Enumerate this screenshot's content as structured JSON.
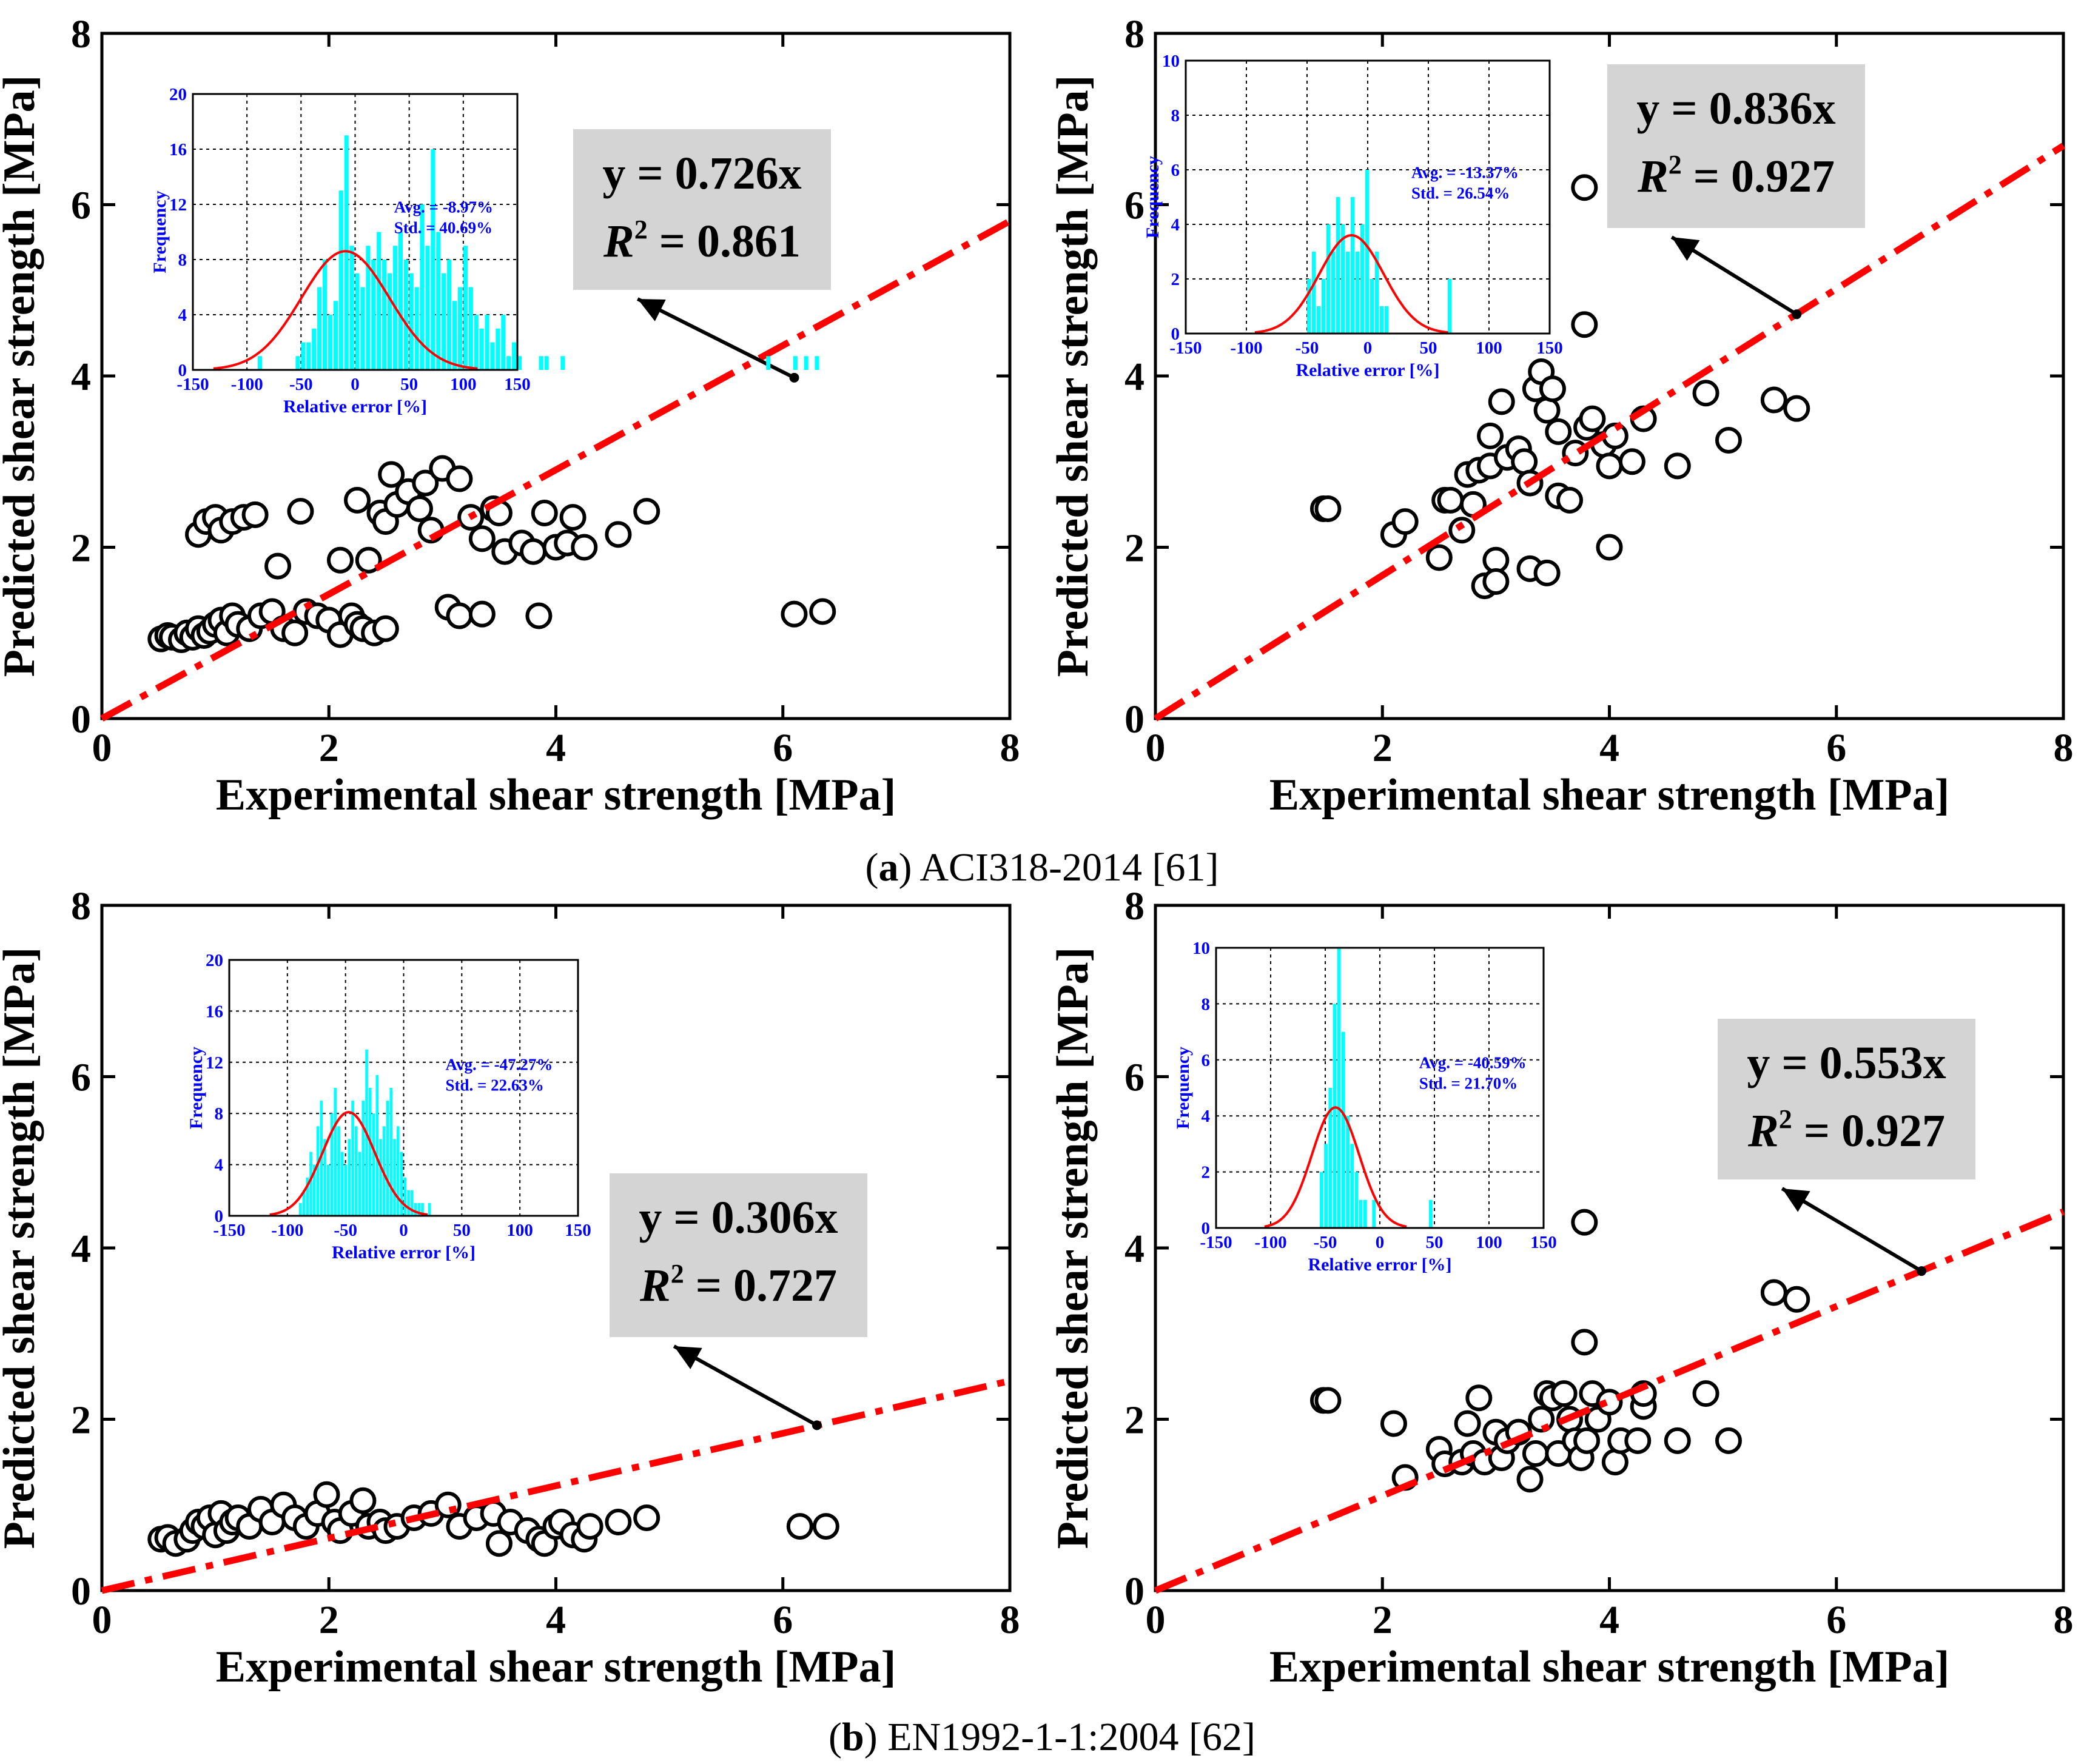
{
  "colors": {
    "fit_line": "#ff0000",
    "histogram_bar": "#00ffff",
    "normal_curve": "#ff0000",
    "inset_text": "#0000ff",
    "equation_box": "#d4d4d4",
    "marker_stroke": "#000000"
  },
  "captions": [
    {
      "letter": "a",
      "open": "(",
      "close": ")",
      "text": " ACI318-2014 [61]"
    },
    {
      "letter": "b",
      "open": "(",
      "close": ")",
      "text": " EN1992-1-1:2004 [62]"
    }
  ],
  "chart_data": [
    {
      "type": "scatter",
      "xlabel": "Experimental shear strength [MPa]",
      "ylabel": "Predicted shear strength [MPa]",
      "xlim": [
        0,
        8
      ],
      "ylim": [
        0,
        8
      ],
      "xticks": [
        "0",
        "2",
        "4",
        "6",
        "8"
      ],
      "yticks": [
        "0",
        "2",
        "4",
        "6",
        "8"
      ],
      "fit": {
        "slope": 0.726,
        "eq_label": "y = 0.726x",
        "r2_prefix": "R",
        "r2_sup": "2",
        "r2_value": " = 0.861",
        "arrow_point": [
          6.1,
          3.98
        ],
        "arrow_dir": "upper-left",
        "box_anchor": "upper-right"
      },
      "points": [
        [
          0.52,
          0.93
        ],
        [
          0.58,
          0.97
        ],
        [
          0.62,
          0.95
        ],
        [
          0.7,
          0.92
        ],
        [
          0.75,
          1.0
        ],
        [
          0.8,
          0.95
        ],
        [
          0.85,
          1.05
        ],
        [
          0.9,
          0.97
        ],
        [
          0.95,
          1.02
        ],
        [
          1.0,
          1.1
        ],
        [
          1.05,
          1.15
        ],
        [
          1.1,
          1.0
        ],
        [
          1.15,
          1.2
        ],
        [
          1.2,
          1.1
        ],
        [
          1.3,
          1.05
        ],
        [
          1.4,
          1.2
        ],
        [
          1.5,
          1.25
        ],
        [
          1.6,
          1.05
        ],
        [
          1.7,
          1.0
        ],
        [
          1.8,
          1.25
        ],
        [
          1.9,
          1.2
        ],
        [
          2.0,
          1.15
        ],
        [
          2.1,
          0.98
        ],
        [
          2.2,
          1.2
        ],
        [
          2.25,
          1.1
        ],
        [
          2.3,
          1.05
        ],
        [
          2.4,
          1.0
        ],
        [
          2.5,
          1.05
        ],
        [
          0.85,
          2.15
        ],
        [
          0.92,
          2.3
        ],
        [
          1.0,
          2.35
        ],
        [
          1.05,
          2.2
        ],
        [
          1.15,
          2.3
        ],
        [
          1.25,
          2.35
        ],
        [
          1.35,
          2.38
        ],
        [
          1.55,
          1.78
        ],
        [
          1.75,
          2.42
        ],
        [
          2.1,
          1.85
        ],
        [
          2.25,
          2.55
        ],
        [
          2.35,
          1.85
        ],
        [
          2.45,
          2.4
        ],
        [
          2.5,
          2.3
        ],
        [
          2.55,
          2.85
        ],
        [
          2.6,
          2.5
        ],
        [
          2.7,
          2.65
        ],
        [
          2.8,
          2.45
        ],
        [
          2.85,
          2.75
        ],
        [
          2.9,
          2.2
        ],
        [
          3.0,
          2.92
        ],
        [
          3.15,
          2.8
        ],
        [
          3.25,
          2.35
        ],
        [
          3.35,
          2.1
        ],
        [
          3.45,
          2.45
        ],
        [
          3.5,
          2.4
        ],
        [
          3.55,
          1.95
        ],
        [
          3.7,
          2.05
        ],
        [
          3.8,
          1.95
        ],
        [
          3.9,
          2.4
        ],
        [
          4.0,
          2.0
        ],
        [
          4.1,
          2.05
        ],
        [
          4.15,
          2.35
        ],
        [
          4.25,
          2.0
        ],
        [
          4.55,
          2.15
        ],
        [
          4.8,
          2.42
        ],
        [
          3.05,
          1.3
        ],
        [
          3.15,
          1.2
        ],
        [
          3.35,
          1.22
        ],
        [
          3.85,
          1.2
        ],
        [
          6.1,
          1.22
        ],
        [
          6.35,
          1.25
        ]
      ],
      "inset": {
        "xlabel": "Relative error [%]",
        "ylabel": "Frequency",
        "xlim": [
          -150,
          150
        ],
        "ylim": [
          0,
          20
        ],
        "xticks": [
          "-150",
          "-100",
          "-50",
          "0",
          "50",
          "100",
          "150"
        ],
        "yticks": [
          "0",
          "4",
          "8",
          "12",
          "16",
          "20"
        ],
        "mean": -8.97,
        "std": 40.69,
        "curve_peak": 8.6,
        "avg_label": "Avg. = -8.97%",
        "std_label": "Std. = 40.69%",
        "bins_start": -90,
        "bin_width": 5,
        "counts": [
          1,
          0,
          0,
          0,
          0,
          0,
          0,
          1,
          2,
          2,
          3,
          6,
          8,
          4,
          5,
          13,
          17,
          9,
          7,
          6,
          9,
          8,
          10,
          8,
          7,
          9,
          10,
          8,
          7,
          6,
          12,
          9,
          16,
          10,
          7,
          8,
          5,
          6,
          9,
          6,
          4,
          3,
          4,
          2,
          3,
          4,
          1,
          2,
          1,
          0,
          0,
          0,
          1,
          1,
          0,
          0,
          1,
          0,
          0,
          0,
          0,
          0,
          0,
          0,
          0,
          0,
          0,
          0,
          0,
          0,
          0,
          0,
          0,
          0,
          0,
          0,
          0,
          0,
          0,
          0,
          0,
          0,
          0,
          0,
          0,
          0,
          0,
          0,
          0,
          0,
          0,
          0,
          0,
          0,
          1,
          0,
          0,
          0,
          0,
          1,
          0,
          1,
          0,
          1,
          0,
          0,
          0
        ]
      }
    },
    {
      "type": "scatter",
      "xlabel": "Experimental shear strength [MPa]",
      "ylabel": "Predicted shear strength [MPa]",
      "xlim": [
        0,
        8
      ],
      "ylim": [
        0,
        8
      ],
      "xticks": [
        "0",
        "2",
        "4",
        "6",
        "8"
      ],
      "yticks": [
        "0",
        "2",
        "4",
        "6",
        "8"
      ],
      "fit": {
        "slope": 0.836,
        "eq_label": "y = 0.836x",
        "r2_prefix": "R",
        "r2_sup": "2",
        "r2_value": " = 0.927",
        "arrow_point": [
          5.65,
          4.72
        ],
        "arrow_dir": "upper-left",
        "box_anchor": "upper-right"
      },
      "points": [
        [
          1.48,
          2.45
        ],
        [
          1.52,
          2.45
        ],
        [
          2.1,
          2.15
        ],
        [
          2.2,
          2.3
        ],
        [
          2.5,
          1.88
        ],
        [
          2.55,
          2.55
        ],
        [
          2.6,
          2.55
        ],
        [
          2.7,
          2.2
        ],
        [
          2.75,
          2.85
        ],
        [
          2.8,
          2.5
        ],
        [
          2.85,
          2.9
        ],
        [
          2.9,
          1.55
        ],
        [
          2.95,
          2.95
        ],
        [
          2.95,
          3.3
        ],
        [
          3.0,
          1.85
        ],
        [
          3.0,
          1.6
        ],
        [
          3.05,
          3.7
        ],
        [
          3.1,
          3.05
        ],
        [
          3.2,
          3.15
        ],
        [
          3.25,
          3.0
        ],
        [
          3.3,
          2.75
        ],
        [
          3.3,
          1.75
        ],
        [
          3.35,
          3.85
        ],
        [
          3.4,
          4.05
        ],
        [
          3.45,
          3.6
        ],
        [
          3.45,
          1.7
        ],
        [
          3.5,
          3.85
        ],
        [
          3.55,
          2.6
        ],
        [
          3.55,
          3.35
        ],
        [
          3.65,
          2.55
        ],
        [
          3.7,
          3.1
        ],
        [
          3.8,
          3.4
        ],
        [
          3.85,
          3.5
        ],
        [
          3.95,
          3.2
        ],
        [
          4.0,
          2.95
        ],
        [
          4.05,
          3.3
        ],
        [
          4.0,
          2.0
        ],
        [
          4.2,
          3.0
        ],
        [
          4.3,
          3.5
        ],
        [
          4.6,
          2.95
        ],
        [
          4.85,
          3.8
        ],
        [
          5.05,
          3.25
        ],
        [
          5.45,
          3.72
        ],
        [
          5.65,
          3.62
        ],
        [
          3.78,
          6.2
        ],
        [
          3.78,
          4.6
        ]
      ],
      "inset": {
        "xlabel": "Relative error [%]",
        "ylabel": "Frequency",
        "xlim": [
          -150,
          150
        ],
        "ylim": [
          0,
          10
        ],
        "xticks": [
          "-150",
          "-100",
          "-50",
          "0",
          "50",
          "100",
          "150"
        ],
        "yticks": [
          "0",
          "2",
          "4",
          "6",
          "8",
          "10"
        ],
        "mean": -13.37,
        "std": 26.54,
        "curve_peak": 3.6,
        "avg_label": "Avg. = -13.37%",
        "std_label": "Std. = 26.54%",
        "bins_start": -50,
        "bin_width": 4,
        "counts": [
          2,
          3,
          1,
          2,
          4,
          3,
          5,
          4,
          3,
          5,
          3,
          4,
          6,
          2,
          3,
          1,
          1,
          0,
          0,
          0,
          0,
          0,
          0,
          0,
          0,
          0,
          0,
          0,
          0,
          2
        ]
      }
    },
    {
      "type": "scatter",
      "xlabel": "Experimental shear strength [MPa]",
      "ylabel": "Predicted shear strength [MPa]",
      "xlim": [
        0,
        8
      ],
      "ylim": [
        0,
        8
      ],
      "xticks": [
        "0",
        "2",
        "4",
        "6",
        "8"
      ],
      "yticks": [
        "0",
        "2",
        "4",
        "6",
        "8"
      ],
      "fit": {
        "slope": 0.306,
        "eq_label": "y = 0.306x",
        "r2_prefix": "R",
        "r2_sup": "2",
        "r2_value": " = 0.727",
        "arrow_point": [
          6.3,
          1.93
        ],
        "arrow_dir": "upper-left",
        "box_anchor": "upper-right"
      },
      "points": [
        [
          0.52,
          0.6
        ],
        [
          0.58,
          0.62
        ],
        [
          0.65,
          0.55
        ],
        [
          0.75,
          0.6
        ],
        [
          0.8,
          0.7
        ],
        [
          0.85,
          0.8
        ],
        [
          0.9,
          0.75
        ],
        [
          0.95,
          0.85
        ],
        [
          1.0,
          0.65
        ],
        [
          1.05,
          0.9
        ],
        [
          1.1,
          0.7
        ],
        [
          1.15,
          0.8
        ],
        [
          1.2,
          0.85
        ],
        [
          1.3,
          0.75
        ],
        [
          1.4,
          0.95
        ],
        [
          1.5,
          0.8
        ],
        [
          1.6,
          1.0
        ],
        [
          1.7,
          0.85
        ],
        [
          1.8,
          0.75
        ],
        [
          1.9,
          0.9
        ],
        [
          1.98,
          1.12
        ],
        [
          2.05,
          0.8
        ],
        [
          2.1,
          0.7
        ],
        [
          2.2,
          0.9
        ],
        [
          2.3,
          1.05
        ],
        [
          2.35,
          0.75
        ],
        [
          2.45,
          0.8
        ],
        [
          2.5,
          0.7
        ],
        [
          2.6,
          0.75
        ],
        [
          2.75,
          0.85
        ],
        [
          2.9,
          0.9
        ],
        [
          3.05,
          1.0
        ],
        [
          3.15,
          0.75
        ],
        [
          3.3,
          0.85
        ],
        [
          3.45,
          0.9
        ],
        [
          3.5,
          0.55
        ],
        [
          3.6,
          0.8
        ],
        [
          3.75,
          0.7
        ],
        [
          3.85,
          0.6
        ],
        [
          3.9,
          0.55
        ],
        [
          4.0,
          0.75
        ],
        [
          4.05,
          0.8
        ],
        [
          4.15,
          0.65
        ],
        [
          4.25,
          0.6
        ],
        [
          4.3,
          0.75
        ],
        [
          4.55,
          0.8
        ],
        [
          4.8,
          0.85
        ],
        [
          6.15,
          0.75
        ],
        [
          6.38,
          0.75
        ]
      ],
      "inset": {
        "xlabel": "Relative error [%]",
        "ylabel": "Frequency",
        "xlim": [
          -150,
          150
        ],
        "ylim": [
          0,
          20
        ],
        "xticks": [
          "-150",
          "-100",
          "-50",
          "0",
          "50",
          "100",
          "150"
        ],
        "yticks": [
          "0",
          "4",
          "8",
          "12",
          "16",
          "20"
        ],
        "mean": -47.27,
        "std": 22.63,
        "curve_peak": 8.1,
        "avg_label": "Avg. = -47.27%",
        "std_label": "Std. = 22.63%",
        "bins_start": -90,
        "bin_width": 3,
        "counts": [
          1,
          2,
          3,
          5,
          4,
          7,
          9,
          6,
          4,
          8,
          10,
          7,
          5,
          4,
          6,
          9,
          7,
          5,
          9,
          13,
          10,
          8,
          11,
          6,
          7,
          9,
          10,
          6,
          7,
          5,
          3,
          2,
          2,
          1,
          1,
          1,
          0,
          1
        ]
      }
    },
    {
      "type": "scatter",
      "xlabel": "Experimental shear strength [MPa]",
      "ylabel": "Predicted shear strength [MPa]",
      "xlim": [
        0,
        8
      ],
      "ylim": [
        0,
        8
      ],
      "xticks": [
        "0",
        "2",
        "4",
        "6",
        "8"
      ],
      "yticks": [
        "0",
        "2",
        "4",
        "6",
        "8"
      ],
      "fit": {
        "slope": 0.553,
        "eq_label": "y = 0.553x",
        "r2_prefix": "R",
        "r2_sup": "2",
        "r2_value": " = 0.927",
        "arrow_point": [
          6.75,
          3.73
        ],
        "arrow_dir": "upper-left",
        "box_anchor": "upper-right"
      },
      "points": [
        [
          1.48,
          2.22
        ],
        [
          1.52,
          2.22
        ],
        [
          2.1,
          1.95
        ],
        [
          2.2,
          1.32
        ],
        [
          2.5,
          1.65
        ],
        [
          2.55,
          1.48
        ],
        [
          2.7,
          1.5
        ],
        [
          2.75,
          1.95
        ],
        [
          2.8,
          1.6
        ],
        [
          2.85,
          2.25
        ],
        [
          2.9,
          1.5
        ],
        [
          3.0,
          1.85
        ],
        [
          3.05,
          1.55
        ],
        [
          3.1,
          1.75
        ],
        [
          3.2,
          1.85
        ],
        [
          3.3,
          1.3
        ],
        [
          3.35,
          1.6
        ],
        [
          3.4,
          2.0
        ],
        [
          3.45,
          2.3
        ],
        [
          3.5,
          2.25
        ],
        [
          3.55,
          1.6
        ],
        [
          3.6,
          2.3
        ],
        [
          3.65,
          2.0
        ],
        [
          3.7,
          1.75
        ],
        [
          3.75,
          1.55
        ],
        [
          3.8,
          1.75
        ],
        [
          3.85,
          2.3
        ],
        [
          3.9,
          2.0
        ],
        [
          4.0,
          2.2
        ],
        [
          4.05,
          1.5
        ],
        [
          4.1,
          1.75
        ],
        [
          4.25,
          1.75
        ],
        [
          4.3,
          2.15
        ],
        [
          4.3,
          2.3
        ],
        [
          4.6,
          1.75
        ],
        [
          4.85,
          2.3
        ],
        [
          5.05,
          1.75
        ],
        [
          5.45,
          3.48
        ],
        [
          5.65,
          3.4
        ],
        [
          3.78,
          2.9
        ],
        [
          3.78,
          4.3
        ]
      ],
      "inset": {
        "xlabel": "Relative error [%]",
        "ylabel": "Frequency",
        "xlim": [
          -150,
          150
        ],
        "ylim": [
          0,
          10
        ],
        "xticks": [
          "-150",
          "-100",
          "-50",
          "0",
          "50",
          "100",
          "150"
        ],
        "yticks": [
          "0",
          "2",
          "4",
          "6",
          "8",
          "10"
        ],
        "mean": -40.59,
        "std": 21.7,
        "curve_peak": 4.3,
        "avg_label": "Avg. = -40.59%",
        "std_label": "Std. = 21.70%",
        "bins_start": -55,
        "bin_width": 4,
        "counts": [
          2,
          3,
          5,
          8,
          10,
          7,
          4,
          3,
          2,
          1,
          1,
          0,
          1,
          0,
          0,
          0,
          0,
          0,
          0,
          0,
          0,
          0,
          0,
          0,
          0,
          1
        ]
      }
    }
  ]
}
